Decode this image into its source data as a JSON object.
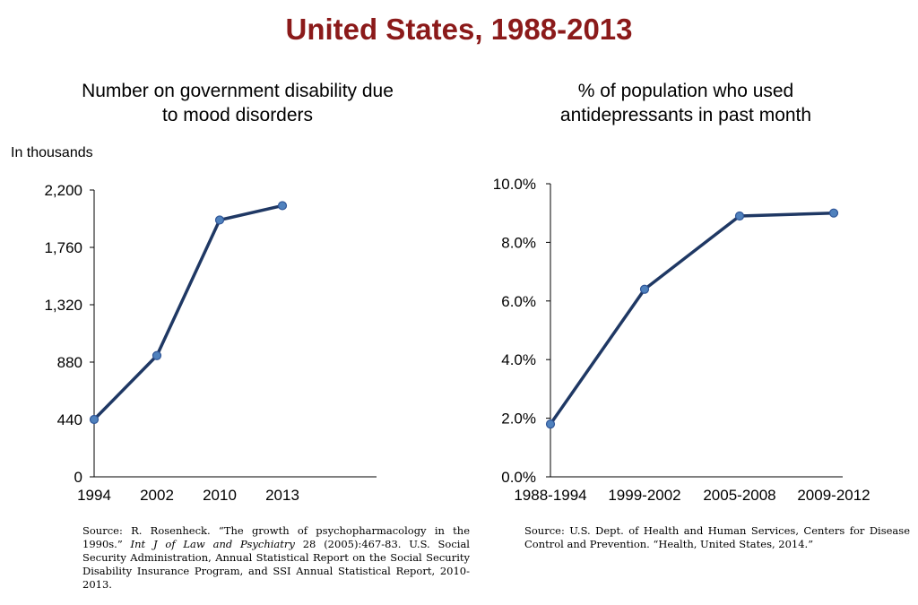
{
  "page": {
    "title": "United States, 1988-2013"
  },
  "left_chart": {
    "title_line1": "Number on government disability due",
    "title_line2": "to mood disorders",
    "unit_label": "In thousands",
    "source": {
      "part1": "Source: R. Rosenheck. “The growth of psychopharmacology in the 1990s.” ",
      "italic": "Int J of Law and Psychiatry",
      "part2": " 28 (2005):467-83.  U.S. Social Security Administration,  Annual Statistical Report on the Social Security Disability Insurance Program, and SSI Annual Statistical Report, 2010-2013."
    }
  },
  "right_chart": {
    "title_line1": "% of population who used",
    "title_line2": "antidepressants in past month",
    "source": "Source: U.S. Dept. of Health and Human Services, Centers for Disease Control and Prevention. “Health, United States, 2014.”"
  },
  "colors": {
    "title": "#8b1a1a",
    "line": "#1f3864",
    "marker": "#4f81bd"
  },
  "chart_data": [
    {
      "type": "line",
      "title": "Number on government disability due to mood disorders",
      "ylabel": "In thousands",
      "categories": [
        "1994",
        "2002",
        "2010",
        "2013"
      ],
      "values": [
        440,
        930,
        1970,
        2080
      ],
      "ylim": [
        0,
        2200
      ],
      "yticks": [
        0,
        440,
        880,
        1320,
        1760,
        2200
      ],
      "ytick_labels": [
        "0",
        "440",
        "880",
        "1,320",
        "1,760",
        "2,200"
      ],
      "grid": false,
      "legend": "none"
    },
    {
      "type": "line",
      "title": "% of population who used antidepressants in past month",
      "categories": [
        "1988-1994",
        "1999-2002",
        "2005-2008",
        "2009-2012"
      ],
      "values": [
        1.8,
        6.4,
        8.9,
        9.0
      ],
      "ylim": [
        0,
        10
      ],
      "yticks": [
        0,
        2,
        4,
        6,
        8,
        10
      ],
      "ytick_labels": [
        "0.0%",
        "2.0%",
        "4.0%",
        "6.0%",
        "8.0%",
        "10.0%"
      ],
      "grid": false,
      "legend": "none"
    }
  ]
}
